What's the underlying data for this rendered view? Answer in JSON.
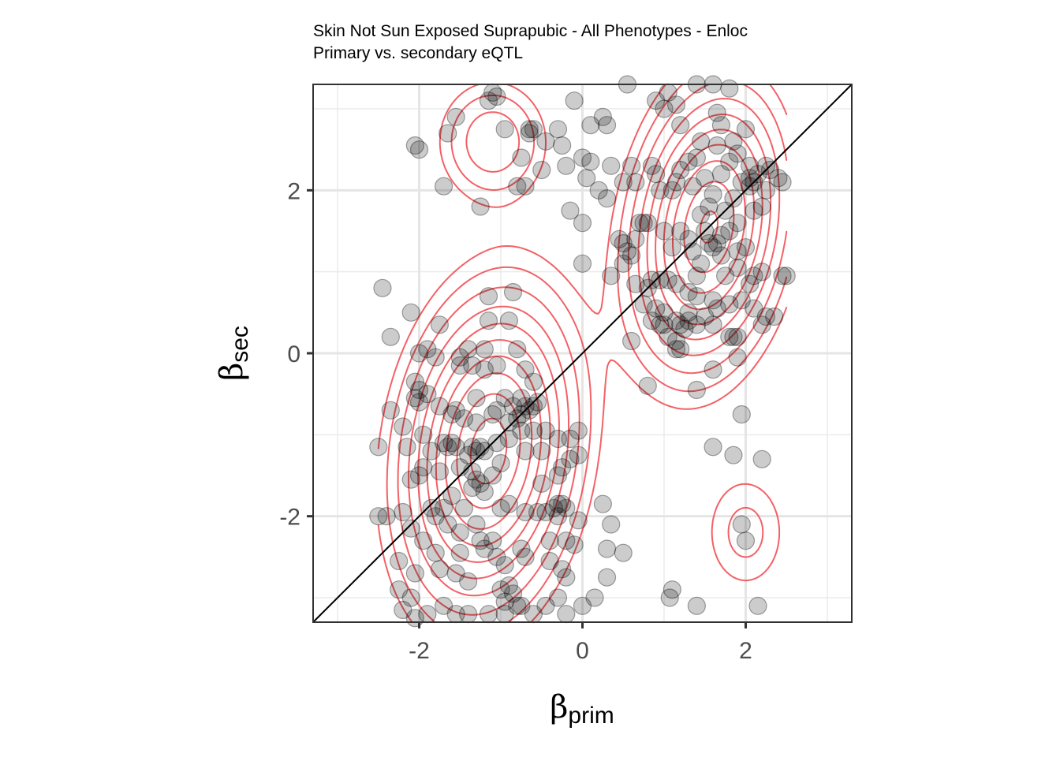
{
  "chart_data": {
    "type": "scatter",
    "title": "Skin Not Sun Exposed Suprapubic - All Phenotypes - Enloc",
    "subtitle": "Primary vs. secondary eQTL",
    "xlabel": {
      "symbol": "β",
      "subscript": "prim"
    },
    "ylabel": {
      "symbol": "β",
      "subscript": "sec"
    },
    "xlim": [
      -3.3,
      3.3
    ],
    "ylim": [
      -3.3,
      3.3
    ],
    "x_ticks": [
      -2,
      0,
      2
    ],
    "y_ticks": [
      -2,
      0,
      2
    ],
    "x_tick_labels": [
      "-2",
      "0",
      "2"
    ],
    "y_tick_labels": [
      "-2",
      "0",
      "2"
    ],
    "grid": true,
    "identity_line": true,
    "point_color": "#000000",
    "point_opacity": 0.2,
    "contour_color": "#f0474c",
    "density_modes": [
      {
        "cx": -1.15,
        "cy": -1.2,
        "sx": 0.58,
        "sy": 1.05,
        "rho": 0.18,
        "w": 1.0
      },
      {
        "cx": 1.55,
        "cy": 1.55,
        "sx": 0.52,
        "sy": 0.95,
        "rho": 0.22,
        "w": 0.95
      },
      {
        "cx": -1.1,
        "cy": 2.6,
        "sx": 0.4,
        "sy": 0.45,
        "rho": 0.0,
        "w": 0.22
      },
      {
        "cx": 2.0,
        "cy": -2.2,
        "sx": 0.35,
        "sy": 0.5,
        "rho": 0.0,
        "w": 0.12
      }
    ],
    "contour_levels": [
      0.06,
      0.1,
      0.16,
      0.24,
      0.33,
      0.43,
      0.54,
      0.66,
      0.8,
      0.93
    ],
    "contour_x_range": [
      -2.5,
      2.5
    ],
    "points": [
      [
        -1.1,
        3.2
      ],
      [
        -1.15,
        3.1
      ],
      [
        -1.05,
        3.15
      ],
      [
        0.55,
        3.3
      ],
      [
        -0.65,
        2.75
      ],
      [
        -0.65,
        2.7
      ],
      [
        -0.6,
        2.75
      ],
      [
        -0.3,
        2.75
      ],
      [
        0.1,
        2.8
      ],
      [
        -0.1,
        3.1
      ],
      [
        0.25,
        2.9
      ],
      [
        0.3,
        2.8
      ],
      [
        -0.95,
        2.75
      ],
      [
        -1.55,
        2.9
      ],
      [
        -1.65,
        2.7
      ],
      [
        -2.05,
        2.55
      ],
      [
        -2.0,
        2.5
      ],
      [
        -0.75,
        2.4
      ],
      [
        -0.45,
        2.6
      ],
      [
        -0.25,
        2.55
      ],
      [
        -0.0,
        2.4
      ],
      [
        0.1,
        2.35
      ],
      [
        -0.2,
        2.3
      ],
      [
        -0.5,
        2.25
      ],
      [
        -0.8,
        2.05
      ],
      [
        -0.7,
        2.05
      ],
      [
        0.05,
        2.15
      ],
      [
        0.2,
        2.0
      ],
      [
        0.35,
        2.3
      ],
      [
        0.5,
        2.1
      ],
      [
        -1.7,
        2.05
      ],
      [
        -1.25,
        1.8
      ],
      [
        -0.15,
        1.75
      ],
      [
        0.0,
        1.6
      ],
      [
        0.3,
        1.9
      ],
      [
        0.6,
        2.3
      ],
      [
        0.65,
        2.1
      ],
      [
        0.85,
        2.3
      ],
      [
        0.9,
        2.2
      ],
      [
        0.95,
        2.0
      ],
      [
        1.1,
        2.0
      ],
      [
        1.15,
        2.1
      ],
      [
        1.2,
        2.25
      ],
      [
        1.3,
        2.35
      ],
      [
        1.4,
        2.4
      ],
      [
        1.45,
        2.6
      ],
      [
        1.2,
        2.8
      ],
      [
        1.0,
        3.0
      ],
      [
        1.05,
        3.2
      ],
      [
        1.15,
        3.05
      ],
      [
        0.9,
        3.1
      ],
      [
        1.4,
        3.3
      ],
      [
        1.6,
        3.3
      ],
      [
        1.8,
        3.25
      ],
      [
        1.65,
        2.95
      ],
      [
        1.7,
        2.8
      ],
      [
        1.65,
        2.55
      ],
      [
        1.85,
        2.6
      ],
      [
        2.0,
        2.75
      ],
      [
        1.9,
        2.45
      ],
      [
        1.8,
        2.35
      ],
      [
        2.05,
        2.3
      ],
      [
        2.05,
        2.15
      ],
      [
        2.05,
        2.05
      ],
      [
        2.1,
        2.1
      ],
      [
        1.95,
        2.1
      ],
      [
        2.15,
        2.2
      ],
      [
        2.25,
        2.3
      ],
      [
        2.3,
        2.25
      ],
      [
        2.4,
        2.15
      ],
      [
        2.45,
        2.1
      ],
      [
        2.25,
        2.0
      ],
      [
        1.7,
        2.2
      ],
      [
        1.5,
        2.15
      ],
      [
        1.35,
        2.05
      ],
      [
        1.6,
        1.95
      ],
      [
        1.55,
        1.8
      ],
      [
        1.45,
        1.7
      ],
      [
        1.75,
        1.75
      ],
      [
        1.85,
        1.9
      ],
      [
        2.1,
        1.75
      ],
      [
        2.2,
        1.8
      ],
      [
        1.9,
        1.6
      ],
      [
        1.8,
        1.5
      ],
      [
        1.7,
        1.45
      ],
      [
        1.6,
        1.3
      ],
      [
        1.55,
        1.35
      ],
      [
        1.65,
        1.35
      ],
      [
        1.5,
        1.5
      ],
      [
        1.3,
        1.4
      ],
      [
        1.2,
        1.5
      ],
      [
        1.35,
        1.25
      ],
      [
        1.45,
        1.1
      ],
      [
        1.4,
        0.95
      ],
      [
        1.7,
        1.2
      ],
      [
        1.9,
        1.25
      ],
      [
        2.0,
        1.3
      ],
      [
        1.9,
        1.05
      ],
      [
        1.75,
        0.95
      ],
      [
        2.05,
        0.85
      ],
      [
        2.1,
        0.95
      ],
      [
        2.2,
        1.0
      ],
      [
        2.5,
        0.95
      ],
      [
        2.45,
        0.95
      ],
      [
        1.3,
        0.75
      ],
      [
        1.4,
        0.7
      ],
      [
        1.6,
        0.65
      ],
      [
        1.65,
        0.55
      ],
      [
        1.3,
        0.5
      ],
      [
        1.5,
        0.45
      ],
      [
        1.6,
        0.35
      ],
      [
        1.8,
        0.6
      ],
      [
        1.95,
        0.65
      ],
      [
        2.1,
        0.55
      ],
      [
        2.25,
        0.45
      ],
      [
        2.35,
        0.45
      ],
      [
        2.2,
        0.35
      ],
      [
        1.4,
        0.35
      ],
      [
        1.3,
        0.4
      ],
      [
        1.2,
        0.35
      ],
      [
        1.15,
        0.4
      ],
      [
        1.0,
        0.5
      ],
      [
        1.0,
        0.35
      ],
      [
        0.95,
        0.35
      ],
      [
        0.85,
        0.9
      ],
      [
        0.95,
        0.9
      ],
      [
        1.05,
        0.9
      ],
      [
        1.15,
        0.85
      ],
      [
        0.8,
        0.8
      ],
      [
        0.75,
        0.6
      ],
      [
        0.65,
        0.85
      ],
      [
        0.85,
        0.4
      ],
      [
        0.9,
        0.55
      ],
      [
        1.1,
        1.3
      ],
      [
        0.8,
        1.6
      ],
      [
        0.75,
        1.6
      ],
      [
        0.7,
        1.6
      ],
      [
        1.0,
        1.5
      ],
      [
        0.45,
        1.4
      ],
      [
        0.5,
        1.35
      ],
      [
        0.55,
        1.25
      ],
      [
        0.6,
        1.2
      ],
      [
        0.5,
        1.1
      ],
      [
        0.65,
        1.4
      ],
      [
        0.35,
        0.95
      ],
      [
        0.0,
        1.1
      ],
      [
        0.6,
        0.15
      ],
      [
        1.05,
        0.2
      ],
      [
        1.15,
        0.15
      ],
      [
        1.25,
        0.3
      ],
      [
        1.2,
        0.05
      ],
      [
        1.15,
        0.05
      ],
      [
        1.85,
        0.2
      ],
      [
        1.8,
        0.2
      ],
      [
        1.9,
        0.2
      ],
      [
        1.9,
        -0.05
      ],
      [
        1.6,
        -0.2
      ],
      [
        0.8,
        -0.4
      ],
      [
        1.4,
        -0.45
      ],
      [
        1.95,
        -0.75
      ],
      [
        1.6,
        -1.15
      ],
      [
        1.85,
        -1.25
      ],
      [
        2.2,
        -1.3
      ],
      [
        1.95,
        -2.1
      ],
      [
        2.0,
        -2.3
      ],
      [
        1.1,
        -2.9
      ],
      [
        1.07,
        -3.0
      ],
      [
        1.4,
        -3.1
      ],
      [
        2.15,
        -3.1
      ],
      [
        -2.45,
        0.8
      ],
      [
        -2.1,
        0.5
      ],
      [
        -2.35,
        0.2
      ],
      [
        -1.75,
        0.35
      ],
      [
        -1.15,
        0.7
      ],
      [
        -0.85,
        0.75
      ],
      [
        -1.15,
        0.4
      ],
      [
        -0.9,
        0.4
      ],
      [
        -2.0,
        0.0
      ],
      [
        -1.9,
        0.05
      ],
      [
        -1.8,
        -0.05
      ],
      [
        -1.5,
        -0.05
      ],
      [
        -1.4,
        0.05
      ],
      [
        -1.2,
        0.05
      ],
      [
        -0.8,
        0.05
      ],
      [
        -1.5,
        -0.15
      ],
      [
        -1.35,
        -0.15
      ],
      [
        -1.2,
        -0.2
      ],
      [
        -1.05,
        -0.15
      ],
      [
        -0.7,
        -0.2
      ],
      [
        -0.75,
        -0.55
      ],
      [
        -0.6,
        -0.35
      ],
      [
        -2.05,
        -0.35
      ],
      [
        -2.0,
        -0.45
      ],
      [
        -1.9,
        -0.5
      ],
      [
        -2.05,
        -0.55
      ],
      [
        -2.0,
        -0.6
      ],
      [
        -1.75,
        -0.65
      ],
      [
        -1.55,
        -0.7
      ],
      [
        -1.3,
        -0.55
      ],
      [
        -1.05,
        -0.7
      ],
      [
        -0.95,
        -0.55
      ],
      [
        -0.85,
        -0.65
      ],
      [
        -0.75,
        -0.75
      ],
      [
        -0.65,
        -0.7
      ],
      [
        -0.6,
        -0.65
      ],
      [
        -0.7,
        -0.65
      ],
      [
        -0.55,
        -0.6
      ],
      [
        -0.8,
        -0.8
      ],
      [
        -0.9,
        -0.85
      ],
      [
        -1.1,
        -0.75
      ],
      [
        -1.3,
        -0.85
      ],
      [
        -1.45,
        -0.8
      ],
      [
        -1.6,
        -0.75
      ],
      [
        -2.35,
        -0.7
      ],
      [
        -2.2,
        -0.9
      ],
      [
        -2.5,
        -1.15
      ],
      [
        -2.15,
        -1.15
      ],
      [
        -1.95,
        -1.0
      ],
      [
        -1.85,
        -1.2
      ],
      [
        -1.7,
        -1.1
      ],
      [
        -1.6,
        -1.1
      ],
      [
        -1.65,
        -1.15
      ],
      [
        -1.55,
        -1.15
      ],
      [
        -1.35,
        -1.15
      ],
      [
        -1.25,
        -1.15
      ],
      [
        -1.3,
        -1.2
      ],
      [
        -1.4,
        -1.25
      ],
      [
        -1.2,
        -1.2
      ],
      [
        -1.05,
        -1.1
      ],
      [
        -0.9,
        -1.05
      ],
      [
        -0.75,
        -0.95
      ],
      [
        -0.6,
        -0.95
      ],
      [
        -0.45,
        -0.95
      ],
      [
        -0.3,
        -1.05
      ],
      [
        -0.05,
        -0.95
      ],
      [
        -0.15,
        -1.05
      ],
      [
        -0.7,
        -1.2
      ],
      [
        -0.5,
        -1.2
      ],
      [
        -0.15,
        -1.3
      ],
      [
        -0.05,
        -1.25
      ],
      [
        -0.25,
        -1.4
      ],
      [
        -0.3,
        -1.5
      ],
      [
        -0.5,
        -1.6
      ],
      [
        -1.0,
        -1.35
      ],
      [
        -1.5,
        -1.4
      ],
      [
        -1.75,
        -1.45
      ],
      [
        -1.95,
        -1.4
      ],
      [
        -2.0,
        -1.5
      ],
      [
        -2.1,
        -1.55
      ],
      [
        -1.35,
        -1.45
      ],
      [
        -1.3,
        -1.55
      ],
      [
        -1.25,
        -1.6
      ],
      [
        -1.35,
        -1.65
      ],
      [
        -1.2,
        -1.7
      ],
      [
        -1.1,
        -1.5
      ],
      [
        -1.6,
        -1.75
      ],
      [
        -1.7,
        -1.9
      ],
      [
        -1.85,
        -1.9
      ],
      [
        -1.45,
        -1.9
      ],
      [
        -1.0,
        -1.9
      ],
      [
        -0.9,
        -1.85
      ],
      [
        -0.7,
        -1.95
      ],
      [
        -0.55,
        -1.95
      ],
      [
        -0.45,
        -1.95
      ],
      [
        -0.3,
        -1.85
      ],
      [
        -0.2,
        -1.9
      ],
      [
        -0.25,
        -1.85
      ],
      [
        -0.3,
        -2.0
      ],
      [
        -0.35,
        -1.9
      ],
      [
        -0.05,
        -2.05
      ],
      [
        0.25,
        -1.85
      ],
      [
        0.35,
        -2.1
      ],
      [
        -2.5,
        -2.0
      ],
      [
        -2.4,
        -2.0
      ],
      [
        -2.2,
        -1.95
      ],
      [
        -2.1,
        -2.15
      ],
      [
        -1.95,
        -2.3
      ],
      [
        -1.8,
        -2.0
      ],
      [
        -1.65,
        -2.1
      ],
      [
        -1.5,
        -2.2
      ],
      [
        -1.3,
        -2.1
      ],
      [
        -1.25,
        -2.3
      ],
      [
        -1.1,
        -2.3
      ],
      [
        -1.2,
        -2.4
      ],
      [
        -1.05,
        -2.5
      ],
      [
        -0.95,
        -2.6
      ],
      [
        -0.75,
        -2.4
      ],
      [
        -0.7,
        -2.5
      ],
      [
        -0.4,
        -2.3
      ],
      [
        -0.4,
        -2.55
      ],
      [
        -0.2,
        -2.3
      ],
      [
        -0.1,
        -2.35
      ],
      [
        0.3,
        -2.4
      ],
      [
        0.5,
        -2.45
      ],
      [
        -1.5,
        -2.45
      ],
      [
        -1.8,
        -2.45
      ],
      [
        -2.25,
        -2.55
      ],
      [
        -2.05,
        -2.7
      ],
      [
        -1.75,
        -2.65
      ],
      [
        -1.55,
        -2.7
      ],
      [
        -1.4,
        -2.8
      ],
      [
        -0.9,
        -2.85
      ],
      [
        -0.85,
        -2.95
      ],
      [
        -1.0,
        -2.9
      ],
      [
        -0.25,
        -2.65
      ],
      [
        -0.2,
        -2.75
      ],
      [
        0.3,
        -2.75
      ],
      [
        -2.25,
        -2.9
      ],
      [
        -2.1,
        -3.0
      ],
      [
        -2.2,
        -3.15
      ],
      [
        -2.05,
        -3.25
      ],
      [
        -1.9,
        -3.2
      ],
      [
        -1.7,
        -3.1
      ],
      [
        -1.55,
        -3.2
      ],
      [
        -1.4,
        -3.2
      ],
      [
        -1.15,
        -3.2
      ],
      [
        -0.95,
        -3.05
      ],
      [
        -0.95,
        -3.2
      ],
      [
        -0.8,
        -3.1
      ],
      [
        -0.75,
        -3.1
      ],
      [
        -0.6,
        -3.2
      ],
      [
        -0.45,
        -3.1
      ],
      [
        -0.3,
        -3.0
      ],
      [
        -0.2,
        -3.2
      ],
      [
        0.0,
        -3.1
      ],
      [
        0.15,
        -3.0
      ]
    ]
  }
}
